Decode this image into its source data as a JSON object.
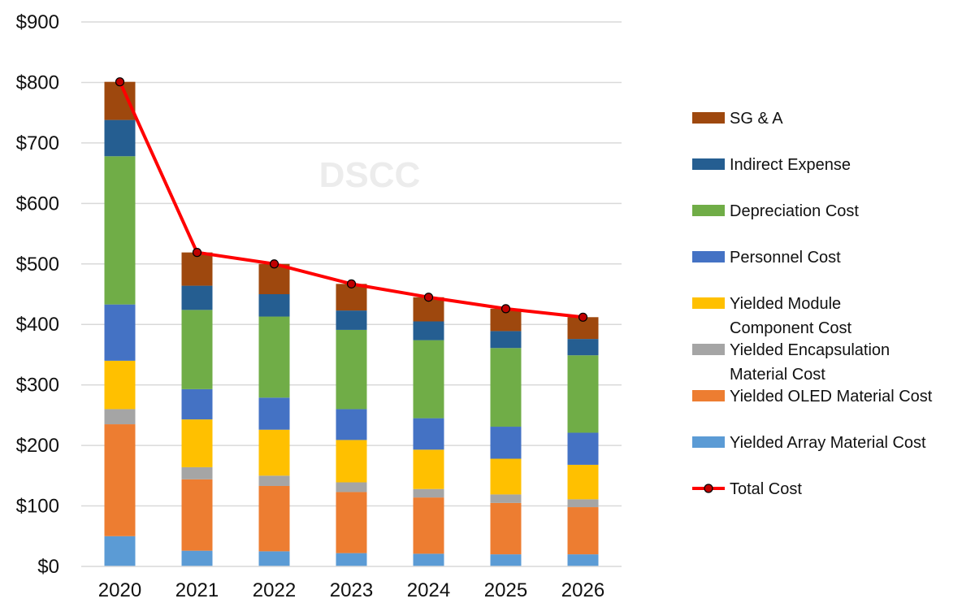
{
  "chart_data": {
    "type": "bar",
    "stacked": true,
    "title": "",
    "watermark": "DSCC",
    "xlabel": "",
    "ylabel": "",
    "ylim": [
      0,
      900
    ],
    "y_ticks": [
      0,
      100,
      200,
      300,
      400,
      500,
      600,
      700,
      800,
      900
    ],
    "y_tick_labels": [
      "$0",
      "$100",
      "$200",
      "$300",
      "$400",
      "$500",
      "$600",
      "$700",
      "$800",
      "$900"
    ],
    "grid": true,
    "legend_position": "right",
    "categories": [
      "2020",
      "2021",
      "2022",
      "2023",
      "2024",
      "2025",
      "2026"
    ],
    "series": [
      {
        "name": "Yielded Array Material Cost",
        "color": "#5b9bd5",
        "values": [
          50,
          26,
          25,
          22,
          21,
          20,
          20
        ]
      },
      {
        "name": "Yielded OLED Material Cost",
        "color": "#ed7d31",
        "values": [
          185,
          118,
          108,
          101,
          93,
          85,
          78
        ]
      },
      {
        "name": "Yielded Encapsulation Material Cost",
        "color": "#a5a5a5",
        "values": [
          25,
          20,
          17,
          16,
          14,
          14,
          13
        ]
      },
      {
        "name": "Yielded Module Component Cost",
        "color": "#ffc000",
        "values": [
          80,
          79,
          76,
          70,
          65,
          59,
          57
        ]
      },
      {
        "name": "Personnel Cost",
        "color": "#4472c4",
        "values": [
          93,
          50,
          53,
          51,
          52,
          53,
          53
        ]
      },
      {
        "name": "Depreciation Cost",
        "color": "#70ad47",
        "values": [
          245,
          131,
          134,
          131,
          129,
          130,
          128
        ]
      },
      {
        "name": "Indirect Expense",
        "color": "#255e91",
        "values": [
          60,
          40,
          37,
          32,
          31,
          28,
          27
        ]
      },
      {
        "name": "SG & A",
        "color": "#9e480e",
        "values": [
          63,
          55,
          50,
          44,
          40,
          37,
          36
        ]
      }
    ],
    "line_series": {
      "name": "Total Cost",
      "color": "#ff0000",
      "marker_color": "#c00000",
      "values": [
        801,
        519,
        500,
        467,
        445,
        426,
        412
      ]
    },
    "legend": [
      {
        "label": "SG & A",
        "color": "#9e480e"
      },
      {
        "label": "Indirect Expense",
        "color": "#255e91"
      },
      {
        "label": "Depreciation Cost",
        "color": "#70ad47"
      },
      {
        "label": "Personnel Cost",
        "color": "#4472c4"
      },
      {
        "label_lines": [
          "Yielded Module",
          "Component Cost"
        ],
        "color": "#ffc000"
      },
      {
        "label_lines": [
          "Yielded Encapsulation",
          "Material Cost"
        ],
        "color": "#a5a5a5"
      },
      {
        "label": "Yielded OLED Material Cost",
        "color": "#ed7d31"
      },
      {
        "label": "Yielded Array Material Cost",
        "color": "#5b9bd5"
      },
      {
        "label": "Total Cost",
        "color": "#ff0000",
        "line": true
      }
    ]
  }
}
